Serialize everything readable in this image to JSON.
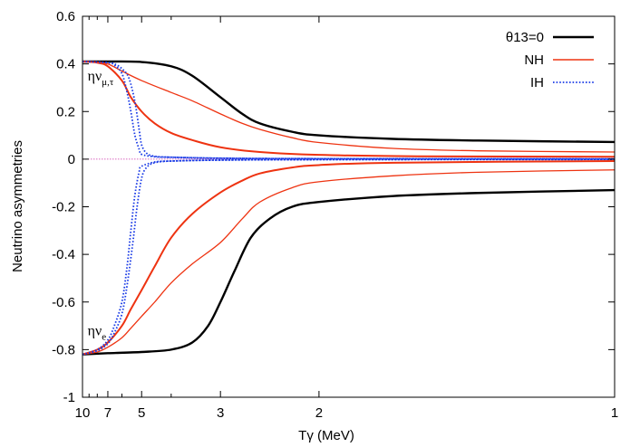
{
  "chart_data": {
    "type": "line",
    "xlabel": "Tγ (MeV)",
    "ylabel": "Neutrino asymmetries",
    "x_scale": "reciprocal",
    "xlim": [
      10,
      1
    ],
    "ylim": [
      -1,
      0.6
    ],
    "x_ticks": [
      10,
      7,
      5,
      3,
      2,
      1
    ],
    "x_minor_ticks": [
      9,
      8,
      6,
      4
    ],
    "y_ticks": [
      -1,
      -0.8,
      -0.6,
      -0.4,
      -0.2,
      0,
      0.2,
      0.4,
      0.6
    ],
    "y_tick_labels": [
      "-1",
      "-0.8",
      "-0.6",
      "-0.4",
      "-0.2",
      "0",
      "0.2",
      "0.4",
      "0.6"
    ],
    "x_tick_labels": [
      "10",
      "7",
      "5",
      "3",
      "2",
      "1"
    ],
    "legend_position": "top-right",
    "legend": [
      {
        "label": "θ13=0",
        "color": "#000000",
        "style": "solid",
        "width": 2.4
      },
      {
        "label": "NH",
        "color": "#ee3311",
        "style": "solid",
        "width": 1.4
      },
      {
        "label": "IH",
        "color": "#1a3be6",
        "style": "dotted",
        "width": 1.8
      }
    ],
    "annotations": [
      {
        "text": "ην",
        "sub": "μ,τ",
        "x": 9.2,
        "y": 0.33
      },
      {
        "text": "ην",
        "sub": "e",
        "x": 9.2,
        "y": -0.74
      }
    ],
    "zero_line": {
      "y": 0,
      "color": "#cc33aa"
    },
    "series": [
      {
        "group": "θ13=0",
        "color": "#000000",
        "style": "solid",
        "width": 2.4,
        "points": [
          [
            10,
            0.41
          ],
          [
            7,
            0.41
          ],
          [
            5,
            0.408
          ],
          [
            4,
            0.39
          ],
          [
            3.5,
            0.35
          ],
          [
            3,
            0.26
          ],
          [
            2.7,
            0.19
          ],
          [
            2.5,
            0.15
          ],
          [
            2.2,
            0.115
          ],
          [
            2,
            0.1
          ],
          [
            1.6,
            0.085
          ],
          [
            1.3,
            0.078
          ],
          [
            1,
            0.072
          ]
        ]
      },
      {
        "group": "θ13=0",
        "color": "#000000",
        "style": "solid",
        "width": 2.4,
        "points": [
          [
            10,
            -0.82
          ],
          [
            7,
            -0.815
          ],
          [
            5,
            -0.81
          ],
          [
            4,
            -0.8
          ],
          [
            3.5,
            -0.77
          ],
          [
            3.2,
            -0.7
          ],
          [
            3,
            -0.6
          ],
          [
            2.8,
            -0.47
          ],
          [
            2.6,
            -0.33
          ],
          [
            2.4,
            -0.25
          ],
          [
            2.2,
            -0.2
          ],
          [
            2,
            -0.18
          ],
          [
            1.6,
            -0.155
          ],
          [
            1.3,
            -0.142
          ],
          [
            1,
            -0.13
          ]
        ]
      },
      {
        "group": "NH",
        "color": "#ee3311",
        "style": "solid",
        "width": 1.3,
        "points": [
          [
            10,
            0.41
          ],
          [
            8,
            0.408
          ],
          [
            7,
            0.4
          ],
          [
            6,
            0.37
          ],
          [
            5,
            0.33
          ],
          [
            4,
            0.28
          ],
          [
            3.5,
            0.245
          ],
          [
            3,
            0.19
          ],
          [
            2.7,
            0.15
          ],
          [
            2.5,
            0.125
          ],
          [
            2.2,
            0.09
          ],
          [
            2,
            0.07
          ],
          [
            1.6,
            0.045
          ],
          [
            1.3,
            0.035
          ],
          [
            1,
            0.03
          ]
        ]
      },
      {
        "group": "NH",
        "color": "#ee3311",
        "style": "solid",
        "width": 2.0,
        "points": [
          [
            10,
            0.41
          ],
          [
            8,
            0.405
          ],
          [
            7,
            0.39
          ],
          [
            6,
            0.33
          ],
          [
            5.5,
            0.26
          ],
          [
            5,
            0.2
          ],
          [
            4.5,
            0.15
          ],
          [
            4,
            0.11
          ],
          [
            3.5,
            0.08
          ],
          [
            3,
            0.05
          ],
          [
            2.5,
            0.03
          ],
          [
            2,
            0.018
          ],
          [
            1.5,
            0.012
          ],
          [
            1,
            0.01
          ]
        ]
      },
      {
        "group": "NH",
        "color": "#ee3311",
        "style": "solid",
        "width": 1.3,
        "points": [
          [
            10,
            -0.82
          ],
          [
            8,
            -0.81
          ],
          [
            7,
            -0.79
          ],
          [
            6,
            -0.75
          ],
          [
            5.5,
            -0.71
          ],
          [
            5,
            -0.66
          ],
          [
            4.5,
            -0.6
          ],
          [
            4,
            -0.52
          ],
          [
            3.5,
            -0.44
          ],
          [
            3,
            -0.35
          ],
          [
            2.7,
            -0.25
          ],
          [
            2.5,
            -0.18
          ],
          [
            2.2,
            -0.12
          ],
          [
            2,
            -0.095
          ],
          [
            1.6,
            -0.07
          ],
          [
            1.3,
            -0.055
          ],
          [
            1,
            -0.045
          ]
        ]
      },
      {
        "group": "NH",
        "color": "#ee3311",
        "style": "solid",
        "width": 2.0,
        "points": [
          [
            10,
            -0.82
          ],
          [
            8,
            -0.8
          ],
          [
            7,
            -0.77
          ],
          [
            6,
            -0.7
          ],
          [
            5.5,
            -0.63
          ],
          [
            5,
            -0.55
          ],
          [
            4.5,
            -0.45
          ],
          [
            4,
            -0.33
          ],
          [
            3.5,
            -0.23
          ],
          [
            3,
            -0.14
          ],
          [
            2.7,
            -0.09
          ],
          [
            2.5,
            -0.06
          ],
          [
            2.2,
            -0.035
          ],
          [
            2,
            -0.025
          ],
          [
            1.6,
            -0.015
          ],
          [
            1,
            -0.008
          ]
        ]
      },
      {
        "group": "IH",
        "color": "#1a3be6",
        "style": "dotted",
        "width": 1.8,
        "points": [
          [
            10,
            0.41
          ],
          [
            7,
            0.405
          ],
          [
            6.5,
            0.395
          ],
          [
            6,
            0.36
          ],
          [
            5.7,
            0.28
          ],
          [
            5.5,
            0.2
          ],
          [
            5.3,
            0.1
          ],
          [
            5.1,
            0.04
          ],
          [
            5,
            0.02
          ],
          [
            4.5,
            0.01
          ],
          [
            4,
            0.008
          ],
          [
            3,
            0.004
          ],
          [
            2,
            0.002
          ],
          [
            1,
            0.001
          ]
        ]
      },
      {
        "group": "IH",
        "color": "#1a3be6",
        "style": "dotted",
        "width": 1.8,
        "points": [
          [
            10,
            0.41
          ],
          [
            7,
            0.406
          ],
          [
            6.5,
            0.4
          ],
          [
            6,
            0.38
          ],
          [
            5.6,
            0.34
          ],
          [
            5.3,
            0.24
          ],
          [
            5.1,
            0.12
          ],
          [
            5,
            0.06
          ],
          [
            4.8,
            0.025
          ],
          [
            4.5,
            0.012
          ],
          [
            4,
            0.008
          ],
          [
            3,
            0.004
          ],
          [
            2,
            0.002
          ],
          [
            1,
            0.001
          ]
        ]
      },
      {
        "group": "IH",
        "color": "#1a3be6",
        "style": "dotted",
        "width": 1.8,
        "points": [
          [
            10,
            -0.82
          ],
          [
            8,
            -0.8
          ],
          [
            7,
            -0.76
          ],
          [
            6.5,
            -0.7
          ],
          [
            6,
            -0.6
          ],
          [
            5.7,
            -0.45
          ],
          [
            5.5,
            -0.3
          ],
          [
            5.3,
            -0.15
          ],
          [
            5.1,
            -0.05
          ],
          [
            5,
            -0.03
          ],
          [
            4.5,
            -0.012
          ],
          [
            4,
            -0.008
          ],
          [
            3,
            -0.004
          ],
          [
            2,
            -0.002
          ],
          [
            1,
            -0.001
          ]
        ]
      },
      {
        "group": "IH",
        "color": "#1a3be6",
        "style": "dotted",
        "width": 1.8,
        "points": [
          [
            10,
            -0.82
          ],
          [
            8,
            -0.805
          ],
          [
            7,
            -0.775
          ],
          [
            6.5,
            -0.73
          ],
          [
            6,
            -0.65
          ],
          [
            5.7,
            -0.53
          ],
          [
            5.4,
            -0.35
          ],
          [
            5.2,
            -0.2
          ],
          [
            5,
            -0.08
          ],
          [
            4.8,
            -0.035
          ],
          [
            4.5,
            -0.015
          ],
          [
            4,
            -0.008
          ],
          [
            3,
            -0.004
          ],
          [
            2,
            -0.002
          ],
          [
            1,
            -0.001
          ]
        ]
      }
    ]
  }
}
